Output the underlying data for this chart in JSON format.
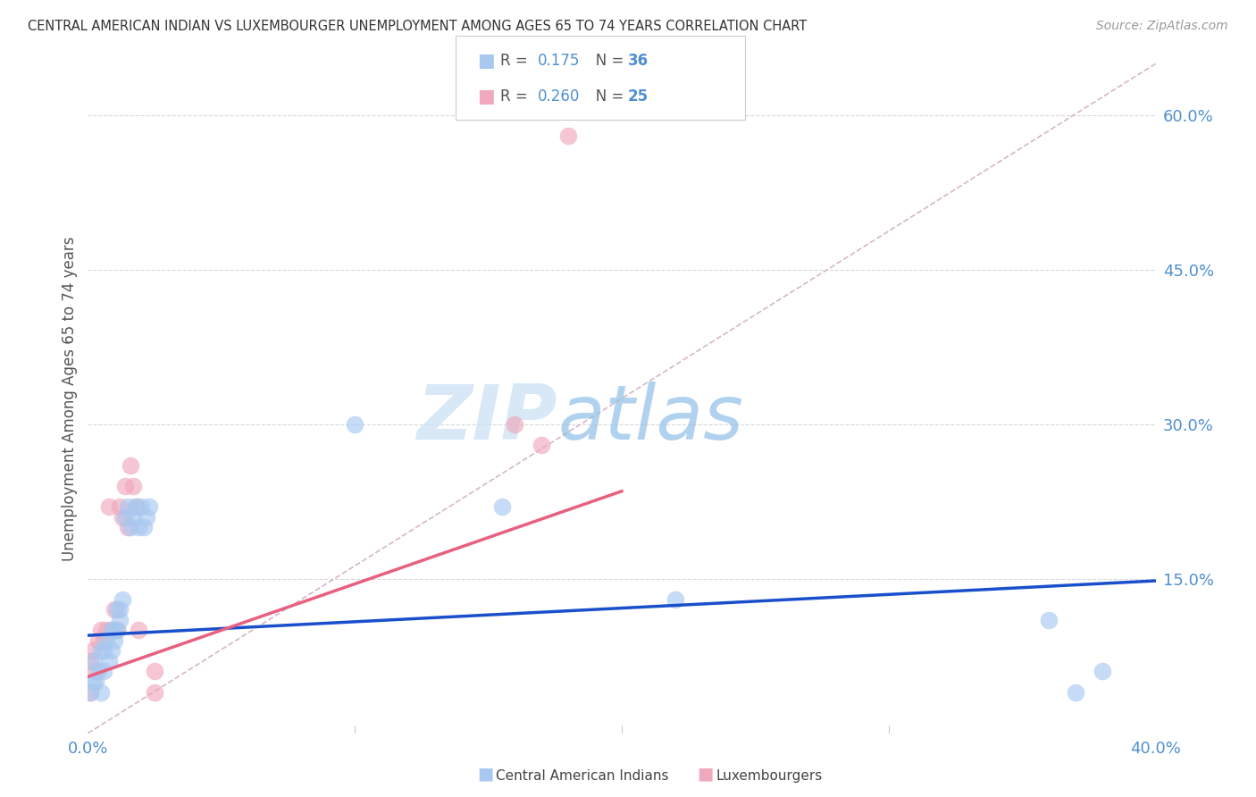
{
  "title": "CENTRAL AMERICAN INDIAN VS LUXEMBOURGER UNEMPLOYMENT AMONG AGES 65 TO 74 YEARS CORRELATION CHART",
  "source": "Source: ZipAtlas.com",
  "ylabel": "Unemployment Among Ages 65 to 74 years",
  "xlim": [
    0.0,
    0.4
  ],
  "ylim": [
    0.0,
    0.65
  ],
  "yticks": [
    0.15,
    0.3,
    0.45,
    0.6
  ],
  "ytick_labels": [
    "15.0%",
    "30.0%",
    "45.0%",
    "60.0%"
  ],
  "xtick_positions": [
    0.0,
    0.1,
    0.2,
    0.3,
    0.4
  ],
  "xtick_labels": [
    "0.0%",
    "",
    "",
    "",
    "40.0%"
  ],
  "blue_color": "#A8C8F0",
  "pink_color": "#F0A8BC",
  "blue_line_color": "#1A4FCC",
  "pink_line_color": "#E86080",
  "diagonal_color": "#D0B0C0",
  "R_blue": "0.175",
  "N_blue": "36",
  "R_pink": "0.260",
  "N_pink": "25",
  "legend_label_blue": "Central American Indians",
  "legend_label_pink": "Luxembourgers",
  "blue_x": [
    0.001,
    0.002,
    0.002,
    0.003,
    0.004,
    0.005,
    0.005,
    0.006,
    0.006,
    0.007,
    0.008,
    0.009,
    0.009,
    0.01,
    0.01,
    0.011,
    0.011,
    0.012,
    0.012,
    0.013,
    0.014,
    0.015,
    0.016,
    0.017,
    0.018,
    0.019,
    0.02,
    0.021,
    0.022,
    0.023,
    0.1,
    0.155,
    0.22,
    0.36,
    0.37,
    0.38
  ],
  "blue_y": [
    0.04,
    0.05,
    0.07,
    0.05,
    0.06,
    0.04,
    0.08,
    0.06,
    0.08,
    0.09,
    0.07,
    0.08,
    0.1,
    0.09,
    0.1,
    0.1,
    0.12,
    0.11,
    0.12,
    0.13,
    0.21,
    0.22,
    0.2,
    0.21,
    0.22,
    0.2,
    0.22,
    0.2,
    0.21,
    0.22,
    0.3,
    0.22,
    0.13,
    0.11,
    0.04,
    0.06
  ],
  "pink_x": [
    0.001,
    0.002,
    0.003,
    0.004,
    0.005,
    0.006,
    0.007,
    0.008,
    0.009,
    0.01,
    0.011,
    0.012,
    0.013,
    0.014,
    0.015,
    0.016,
    0.017,
    0.018,
    0.019,
    0.025,
    0.025,
    0.16,
    0.17,
    0.18,
    0.001
  ],
  "pink_y": [
    0.04,
    0.08,
    0.06,
    0.09,
    0.1,
    0.09,
    0.1,
    0.22,
    0.1,
    0.12,
    0.1,
    0.22,
    0.21,
    0.24,
    0.2,
    0.26,
    0.24,
    0.22,
    0.1,
    0.04,
    0.06,
    0.3,
    0.28,
    0.58,
    0.07
  ],
  "blue_line_x": [
    0.0,
    0.4
  ],
  "blue_line_y": [
    0.095,
    0.148
  ],
  "pink_line_x": [
    0.0,
    0.2
  ],
  "pink_line_y": [
    0.055,
    0.235
  ],
  "watermark_zip": "ZIP",
  "watermark_atlas": "atlas",
  "background_color": "#FFFFFF",
  "axis_tick_color": "#5090D0",
  "grid_color": "#D8D8D8",
  "title_color": "#333333",
  "ylabel_color": "#555555",
  "source_color": "#999999",
  "legend_border_color": "#CCCCCC"
}
